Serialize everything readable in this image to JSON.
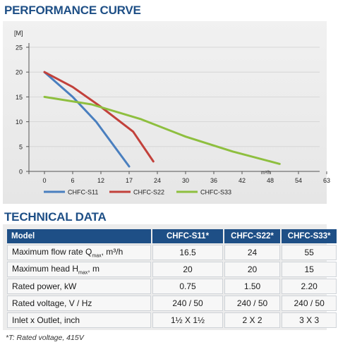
{
  "curve_title": "PERFORMANCE CURVE",
  "tech_title": "TECHNICAL DATA",
  "chart_data": {
    "type": "line",
    "ylabel": "[M]",
    "xlabel": "m³/h",
    "xlim": [
      0,
      63
    ],
    "ylim": [
      0,
      25
    ],
    "x_ticks": [
      0,
      6,
      12,
      17,
      24,
      30,
      36,
      42,
      48,
      54,
      63
    ],
    "x_tick_labels": [
      "0",
      "6",
      "12",
      "17",
      "24",
      "30",
      "36",
      "42",
      "48",
      "54",
      "63"
    ],
    "y_ticks": [
      0,
      5,
      10,
      15,
      20,
      25
    ],
    "grid": "horizontal",
    "legend_position": "bottom",
    "series": [
      {
        "name": "CHFC-S11",
        "color": "#4a7fbf",
        "points": [
          [
            0,
            20
          ],
          [
            6,
            15
          ],
          [
            11,
            10
          ],
          [
            17,
            1
          ]
        ]
      },
      {
        "name": "CHFC-S22",
        "color": "#c2413b",
        "points": [
          [
            0,
            20
          ],
          [
            6,
            17
          ],
          [
            12,
            13
          ],
          [
            18,
            8
          ],
          [
            23,
            2
          ]
        ]
      },
      {
        "name": "CHFC-S33",
        "color": "#8ebf3f",
        "points": [
          [
            0,
            15
          ],
          [
            10,
            13.5
          ],
          [
            20,
            10.5
          ],
          [
            30,
            7
          ],
          [
            40,
            4
          ],
          [
            50,
            1.5
          ]
        ]
      }
    ]
  },
  "table": {
    "header": {
      "model": "Model",
      "c1": "CHFC-S11*",
      "c2": "CHFC-S22*",
      "c3": "CHFC-S33*"
    },
    "rows": [
      {
        "label": "Maximum flow rate Q",
        "sub": "max",
        "unit": "m³/h",
        "v1": "16.5",
        "v2": "24",
        "v3": "55"
      },
      {
        "label": "Maximum head H",
        "sub": "max",
        "unit": "m",
        "v1": "20",
        "v2": "20",
        "v3": "15"
      },
      {
        "label": "Rated power, kW",
        "v1": "0.75",
        "v2": "1.50",
        "v3": "2.20"
      },
      {
        "label": "Rated voltage, V / Hz",
        "v1": "240 / 50",
        "v2": "240 / 50",
        "v3": "240 / 50"
      },
      {
        "label": "Inlet x Outlet, inch",
        "v1": "1½ X 1½",
        "v2": "2 X 2",
        "v3": "3 X 3"
      }
    ]
  },
  "footnote": "*T: Rated voltage, 415V"
}
